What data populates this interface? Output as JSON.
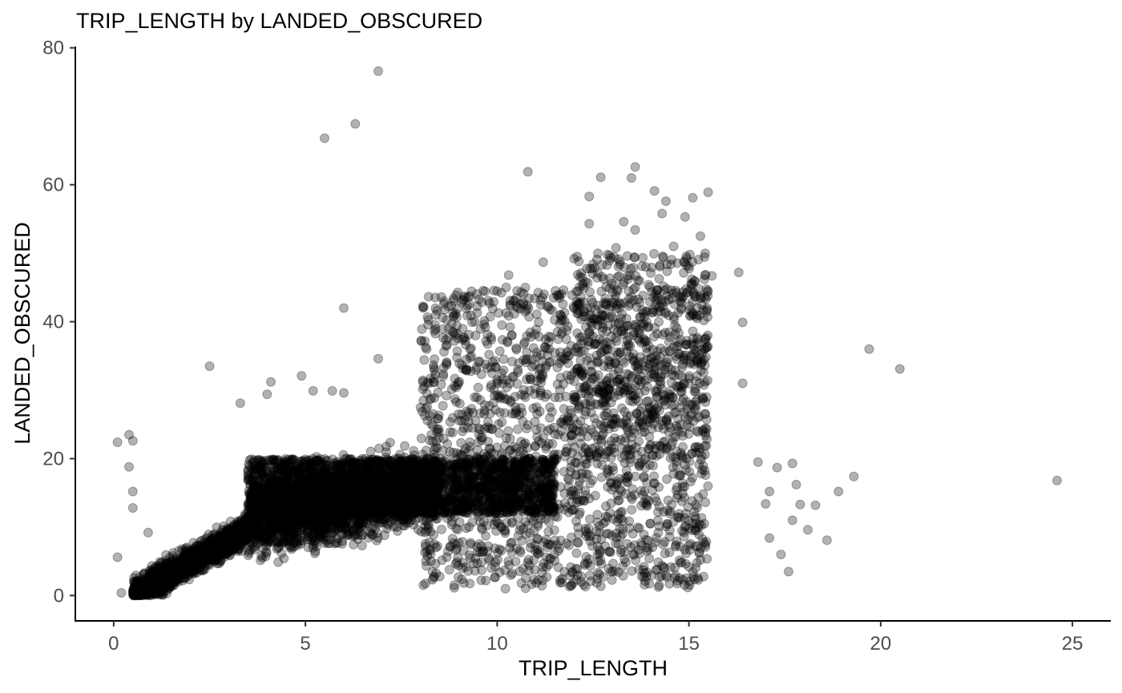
{
  "chart_data": {
    "type": "scatter",
    "title": "TRIP_LENGTH by LANDED_OBSCURED",
    "xlabel": "TRIP_LENGTH",
    "ylabel": "LANDED_OBSCURED",
    "xlim": [
      -1,
      26
    ],
    "ylim": [
      -3.7,
      80.2
    ],
    "x_ticks": [
      0,
      5,
      10,
      15,
      20,
      25
    ],
    "y_ticks": [
      0,
      20,
      40,
      60,
      80
    ],
    "grid": false,
    "legend": "none",
    "point_color": "#000000",
    "point_alpha": 0.3,
    "outlier_points": [
      {
        "x": 6.9,
        "y": 76.6
      },
      {
        "x": 6.3,
        "y": 68.9
      },
      {
        "x": 5.5,
        "y": 66.8
      },
      {
        "x": 10.8,
        "y": 61.9
      },
      {
        "x": 13.6,
        "y": 62.6
      },
      {
        "x": 12.7,
        "y": 61.1
      },
      {
        "x": 13.5,
        "y": 61.0
      },
      {
        "x": 14.1,
        "y": 59.1
      },
      {
        "x": 15.5,
        "y": 58.9
      },
      {
        "x": 12.4,
        "y": 58.3
      },
      {
        "x": 15.1,
        "y": 58.1
      },
      {
        "x": 14.4,
        "y": 57.6
      },
      {
        "x": 14.3,
        "y": 55.8
      },
      {
        "x": 14.9,
        "y": 55.3
      },
      {
        "x": 12.4,
        "y": 54.3
      },
      {
        "x": 13.3,
        "y": 54.6
      },
      {
        "x": 13.6,
        "y": 53.4
      },
      {
        "x": 15.3,
        "y": 52.5
      },
      {
        "x": 14.6,
        "y": 51.0
      },
      {
        "x": 13.1,
        "y": 50.8
      },
      {
        "x": 11.2,
        "y": 48.7
      },
      {
        "x": 12.5,
        "y": 48.4
      },
      {
        "x": 16.3,
        "y": 47.2
      },
      {
        "x": 15.6,
        "y": 46.7
      },
      {
        "x": 10.3,
        "y": 46.8
      },
      {
        "x": 15.4,
        "y": 46.2
      },
      {
        "x": 12.3,
        "y": 45.8
      },
      {
        "x": 6.0,
        "y": 42.0
      },
      {
        "x": 16.4,
        "y": 39.9
      },
      {
        "x": 19.7,
        "y": 36.0
      },
      {
        "x": 20.5,
        "y": 33.1
      },
      {
        "x": 2.5,
        "y": 33.5
      },
      {
        "x": 4.9,
        "y": 32.1
      },
      {
        "x": 4.1,
        "y": 31.2
      },
      {
        "x": 4.0,
        "y": 29.4
      },
      {
        "x": 5.2,
        "y": 29.9
      },
      {
        "x": 5.7,
        "y": 29.9
      },
      {
        "x": 6.0,
        "y": 29.6
      },
      {
        "x": 3.3,
        "y": 28.1
      },
      {
        "x": 6.9,
        "y": 34.6
      },
      {
        "x": 16.4,
        "y": 31.0
      },
      {
        "x": 24.6,
        "y": 16.8
      },
      {
        "x": 19.3,
        "y": 17.4
      },
      {
        "x": 18.9,
        "y": 15.2
      },
      {
        "x": 17.7,
        "y": 19.3
      },
      {
        "x": 16.8,
        "y": 19.5
      },
      {
        "x": 18.6,
        "y": 8.1
      },
      {
        "x": 17.6,
        "y": 3.5
      },
      {
        "x": 18.1,
        "y": 9.6
      },
      {
        "x": 18.3,
        "y": 13.2
      },
      {
        "x": 17.9,
        "y": 13.3
      },
      {
        "x": 17.7,
        "y": 11.0
      },
      {
        "x": 17.1,
        "y": 8.4
      },
      {
        "x": 17.4,
        "y": 6.0
      },
      {
        "x": 17.3,
        "y": 18.7
      },
      {
        "x": 17.1,
        "y": 15.2
      },
      {
        "x": 17.0,
        "y": 13.4
      },
      {
        "x": 17.8,
        "y": 16.2
      },
      {
        "x": 0.1,
        "y": 22.4
      },
      {
        "x": 0.4,
        "y": 23.5
      },
      {
        "x": 0.5,
        "y": 22.6
      },
      {
        "x": 0.4,
        "y": 18.8
      },
      {
        "x": 0.5,
        "y": 15.2
      },
      {
        "x": 0.5,
        "y": 12.8
      },
      {
        "x": 0.1,
        "y": 5.6
      },
      {
        "x": 0.9,
        "y": 9.2
      },
      {
        "x": 0.2,
        "y": 0.4
      },
      {
        "x": 0.8,
        "y": 1.1
      }
    ],
    "clusters": [
      {
        "x_range": [
          0.5,
          3.5
        ],
        "y_func": "linear",
        "slope": 3.2,
        "intercept": -1.5,
        "spread": 2.5,
        "count": 1500
      },
      {
        "x_range": [
          3.5,
          8.5
        ],
        "y_func": "linear",
        "slope": 1.0,
        "intercept": 7.5,
        "spread": 6.0,
        "count": 2600
      },
      {
        "x_range": [
          3.5,
          11.5
        ],
        "y_band": [
          12,
          20
        ],
        "count": 2200
      },
      {
        "x_range": [
          8,
          15.5
        ],
        "y_band": [
          1,
          45
        ],
        "count": 1800
      },
      {
        "x_range": [
          12,
          15.5
        ],
        "y_band": [
          20,
          50
        ],
        "count": 500
      }
    ]
  }
}
